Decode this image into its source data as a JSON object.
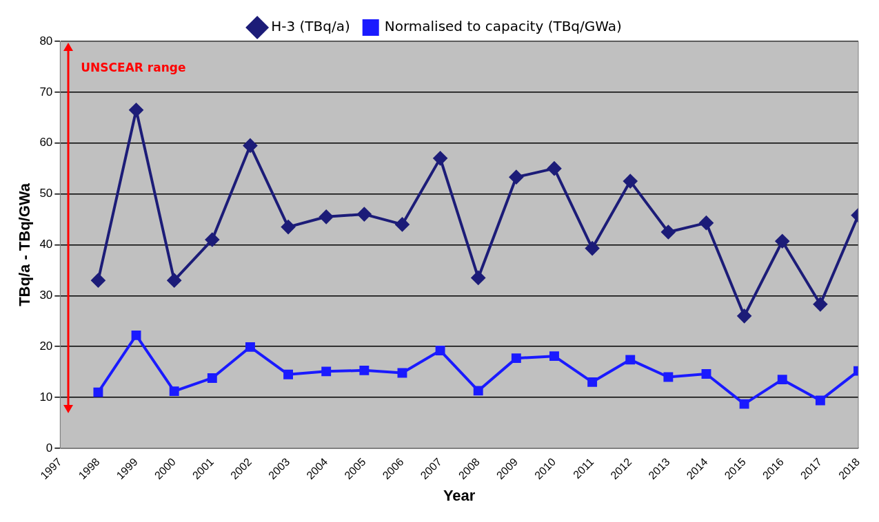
{
  "chart_data": {
    "type": "line",
    "xlabel": "Year",
    "ylabel": "TBq/a - TBq/GWa",
    "x": [
      1998,
      1999,
      2000,
      2001,
      2002,
      2003,
      2004,
      2005,
      2006,
      2007,
      2008,
      2009,
      2010,
      2011,
      2012,
      2013,
      2014,
      2015,
      2016,
      2017,
      2018
    ],
    "series": [
      {
        "name": "H-3 (TBq/a)",
        "color": "#1c1c78",
        "marker": "diamond",
        "values": [
          33,
          66.5,
          33,
          41,
          59.5,
          43.5,
          45.5,
          46,
          44,
          57,
          33.5,
          53.3,
          55,
          39.3,
          52.5,
          42.5,
          44.3,
          26,
          40.7,
          28.3,
          45.8
        ]
      },
      {
        "name": "Normalised to capacity (TBq/GWa)",
        "color": "#1a1aff",
        "marker": "square",
        "values": [
          11,
          22.2,
          11.2,
          13.8,
          19.9,
          14.5,
          15.1,
          15.3,
          14.8,
          19.2,
          11.3,
          17.7,
          18.1,
          13,
          17.4,
          14,
          14.6,
          8.7,
          13.5,
          9.4,
          15.2
        ]
      }
    ],
    "xlim": [
      1997,
      2018
    ],
    "xticks": [
      1997,
      1998,
      1999,
      2000,
      2001,
      2002,
      2003,
      2004,
      2005,
      2006,
      2007,
      2008,
      2009,
      2010,
      2011,
      2012,
      2013,
      2014,
      2015,
      2016,
      2017,
      2018
    ],
    "ylim": [
      0,
      80
    ],
    "yticks": [
      0,
      10,
      20,
      30,
      40,
      50,
      60,
      70,
      80
    ],
    "annotations": [
      "UNSCEAR range"
    ],
    "grid": "y",
    "legend": "top",
    "line_style": "solid"
  }
}
